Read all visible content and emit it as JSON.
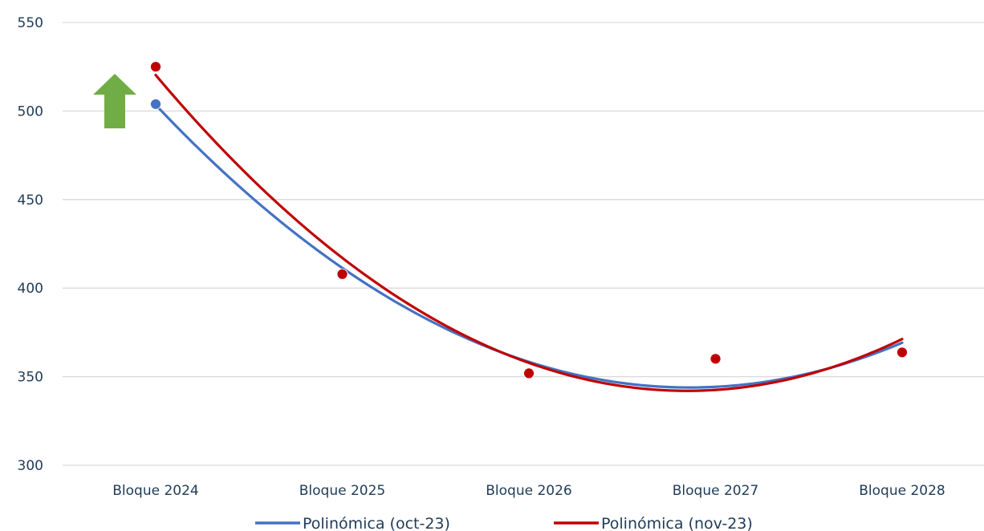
{
  "chart_data": {
    "type": "scatter",
    "categories": [
      "Bloque 2024",
      "Bloque 2025",
      "Bloque 2026",
      "Bloque 2027",
      "Bloque 2028"
    ],
    "ylim": [
      300,
      550
    ],
    "yticks": [
      300,
      350,
      400,
      450,
      500,
      550
    ],
    "grid": true,
    "legend_placement": "bottom",
    "series": [
      {
        "name": "Polinómica (oct-23)",
        "color": "#4472c4",
        "points": [
          503.9,
          407.9,
          351.9,
          360.1,
          363.7
        ],
        "trend_points": [
          503.9,
          410.5,
          358.3,
          345.2,
          368.7
        ]
      },
      {
        "name": "Polinómica (nov-23)",
        "color": "#c00000",
        "points": [
          525.0,
          407.9,
          351.9,
          360.1,
          363.7
        ],
        "trend_points": [
          520.4,
          416.8,
          358.0,
          342.5,
          371.2
        ]
      }
    ],
    "annotation": {
      "icon": "green-up-arrow-icon",
      "color": "#70ad47"
    }
  }
}
